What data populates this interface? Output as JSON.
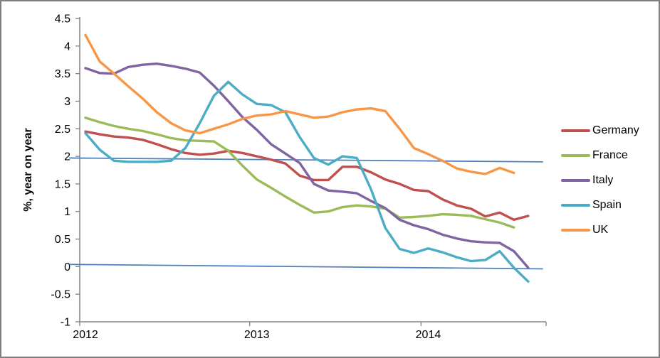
{
  "window": {
    "background": "#FFFFFF",
    "border_color": "#7F7F7F",
    "axis_color": "#808080",
    "text_color": "#000000"
  },
  "chart_data": {
    "type": "line",
    "title": "",
    "xlabel": "",
    "ylabel": "%, year on year",
    "ylim": [
      -1,
      4.5
    ],
    "y_tick_step": 0.5,
    "y_tick_labels": [
      "4.5",
      "4",
      "3.5",
      "3",
      "2.5",
      "2",
      "1.5",
      "1",
      "0.5",
      "0",
      "-0.5",
      "-1"
    ],
    "x_ticks": [
      {
        "label": "2012",
        "month_index": 0
      },
      {
        "label": "2013",
        "month_index": 12
      },
      {
        "label": "2014",
        "month_index": 24
      }
    ],
    "x_unit": "month",
    "months_span": 33,
    "grid": false,
    "legend_position": "right",
    "series": [
      {
        "name": "Germany",
        "color": "#C0504D",
        "values": [
          2.45,
          2.4,
          2.36,
          2.34,
          2.3,
          2.22,
          2.13,
          2.06,
          2.03,
          2.05,
          2.1,
          2.06,
          2.0,
          1.94,
          1.87,
          1.65,
          1.57,
          1.57,
          1.81,
          1.81,
          1.71,
          1.58,
          1.5,
          1.39,
          1.37,
          1.22,
          1.11,
          1.05,
          0.91,
          0.98,
          0.85,
          0.92
        ]
      },
      {
        "name": "France",
        "color": "#9BBB59",
        "values": [
          2.7,
          2.62,
          2.55,
          2.5,
          2.46,
          2.4,
          2.33,
          2.29,
          2.28,
          2.27,
          2.1,
          1.83,
          1.58,
          1.43,
          1.27,
          1.12,
          0.98,
          1.0,
          1.08,
          1.11,
          1.09,
          1.05,
          0.89,
          0.9,
          0.92,
          0.95,
          0.94,
          0.92,
          0.86,
          0.8,
          0.71
        ]
      },
      {
        "name": "Italy",
        "color": "#8064A2",
        "values": [
          3.6,
          3.51,
          3.5,
          3.62,
          3.66,
          3.68,
          3.64,
          3.59,
          3.52,
          3.28,
          3.0,
          2.71,
          2.48,
          2.22,
          2.05,
          1.88,
          1.5,
          1.38,
          1.36,
          1.33,
          1.19,
          1.06,
          0.85,
          0.75,
          0.68,
          0.58,
          0.51,
          0.46,
          0.44,
          0.43,
          0.28,
          -0.02
        ]
      },
      {
        "name": "Spain",
        "color": "#4BACC6",
        "values": [
          2.42,
          2.12,
          1.92,
          1.9,
          1.9,
          1.9,
          1.92,
          2.15,
          2.6,
          3.1,
          3.35,
          3.12,
          2.95,
          2.93,
          2.8,
          2.35,
          1.97,
          1.85,
          2.0,
          1.97,
          1.4,
          0.7,
          0.32,
          0.25,
          0.33,
          0.26,
          0.17,
          0.1,
          0.12,
          0.28,
          -0.02,
          -0.27
        ]
      },
      {
        "name": "UK",
        "color": "#F79646",
        "values": [
          4.2,
          3.72,
          3.5,
          3.27,
          3.05,
          2.8,
          2.6,
          2.47,
          2.42,
          2.5,
          2.58,
          2.68,
          2.74,
          2.76,
          2.82,
          2.76,
          2.7,
          2.72,
          2.8,
          2.85,
          2.87,
          2.82,
          2.5,
          2.15,
          2.04,
          1.92,
          1.78,
          1.72,
          1.68,
          1.79,
          1.7
        ]
      }
    ],
    "reference_lines": [
      {
        "name": "trend-near-2pct",
        "color": "#4F81BD",
        "start_value": 1.97,
        "end_value": 1.9
      },
      {
        "name": "trend-near-0pct",
        "color": "#4F81BD",
        "start_value": 0.04,
        "end_value": -0.04
      }
    ]
  }
}
